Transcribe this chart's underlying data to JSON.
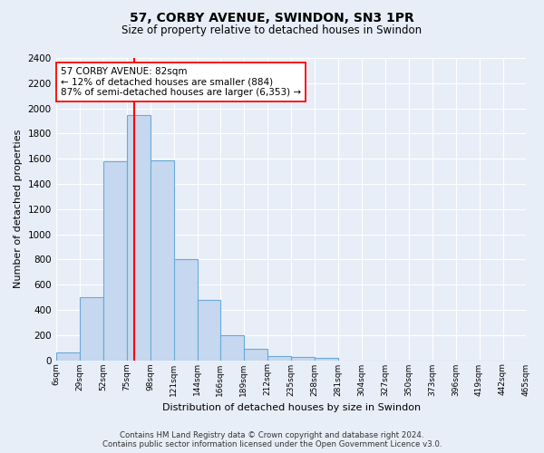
{
  "title": "57, CORBY AVENUE, SWINDON, SN3 1PR",
  "subtitle": "Size of property relative to detached houses in Swindon",
  "xlabel": "Distribution of detached houses by size in Swindon",
  "ylabel": "Number of detached properties",
  "bar_color": "#c5d8f0",
  "bar_edge_color": "#6aaad4",
  "bg_color": "#e8eef8",
  "grid_color": "#ffffff",
  "vline_x": 82,
  "vline_color": "red",
  "annotation_text": "57 CORBY AVENUE: 82sqm\n← 12% of detached houses are smaller (884)\n87% of semi-detached houses are larger (6,353) →",
  "annotation_box_color": "white",
  "annotation_box_edge": "red",
  "footer_text": "Contains HM Land Registry data © Crown copyright and database right 2024.\nContains public sector information licensed under the Open Government Licence v3.0.",
  "bin_edges": [
    6,
    29,
    52,
    75,
    98,
    121,
    144,
    166,
    189,
    212,
    235,
    258,
    281,
    304,
    327,
    350,
    373,
    396,
    419,
    442,
    465
  ],
  "bar_heights": [
    60,
    500,
    1580,
    1950,
    1590,
    800,
    480,
    195,
    90,
    35,
    28,
    20,
    0,
    0,
    0,
    0,
    0,
    0,
    0,
    0
  ],
  "ylim": [
    0,
    2400
  ],
  "yticks": [
    0,
    200,
    400,
    600,
    800,
    1000,
    1200,
    1400,
    1600,
    1800,
    2000,
    2200,
    2400
  ],
  "figsize": [
    6.0,
    5.0
  ],
  "dpi": 100
}
